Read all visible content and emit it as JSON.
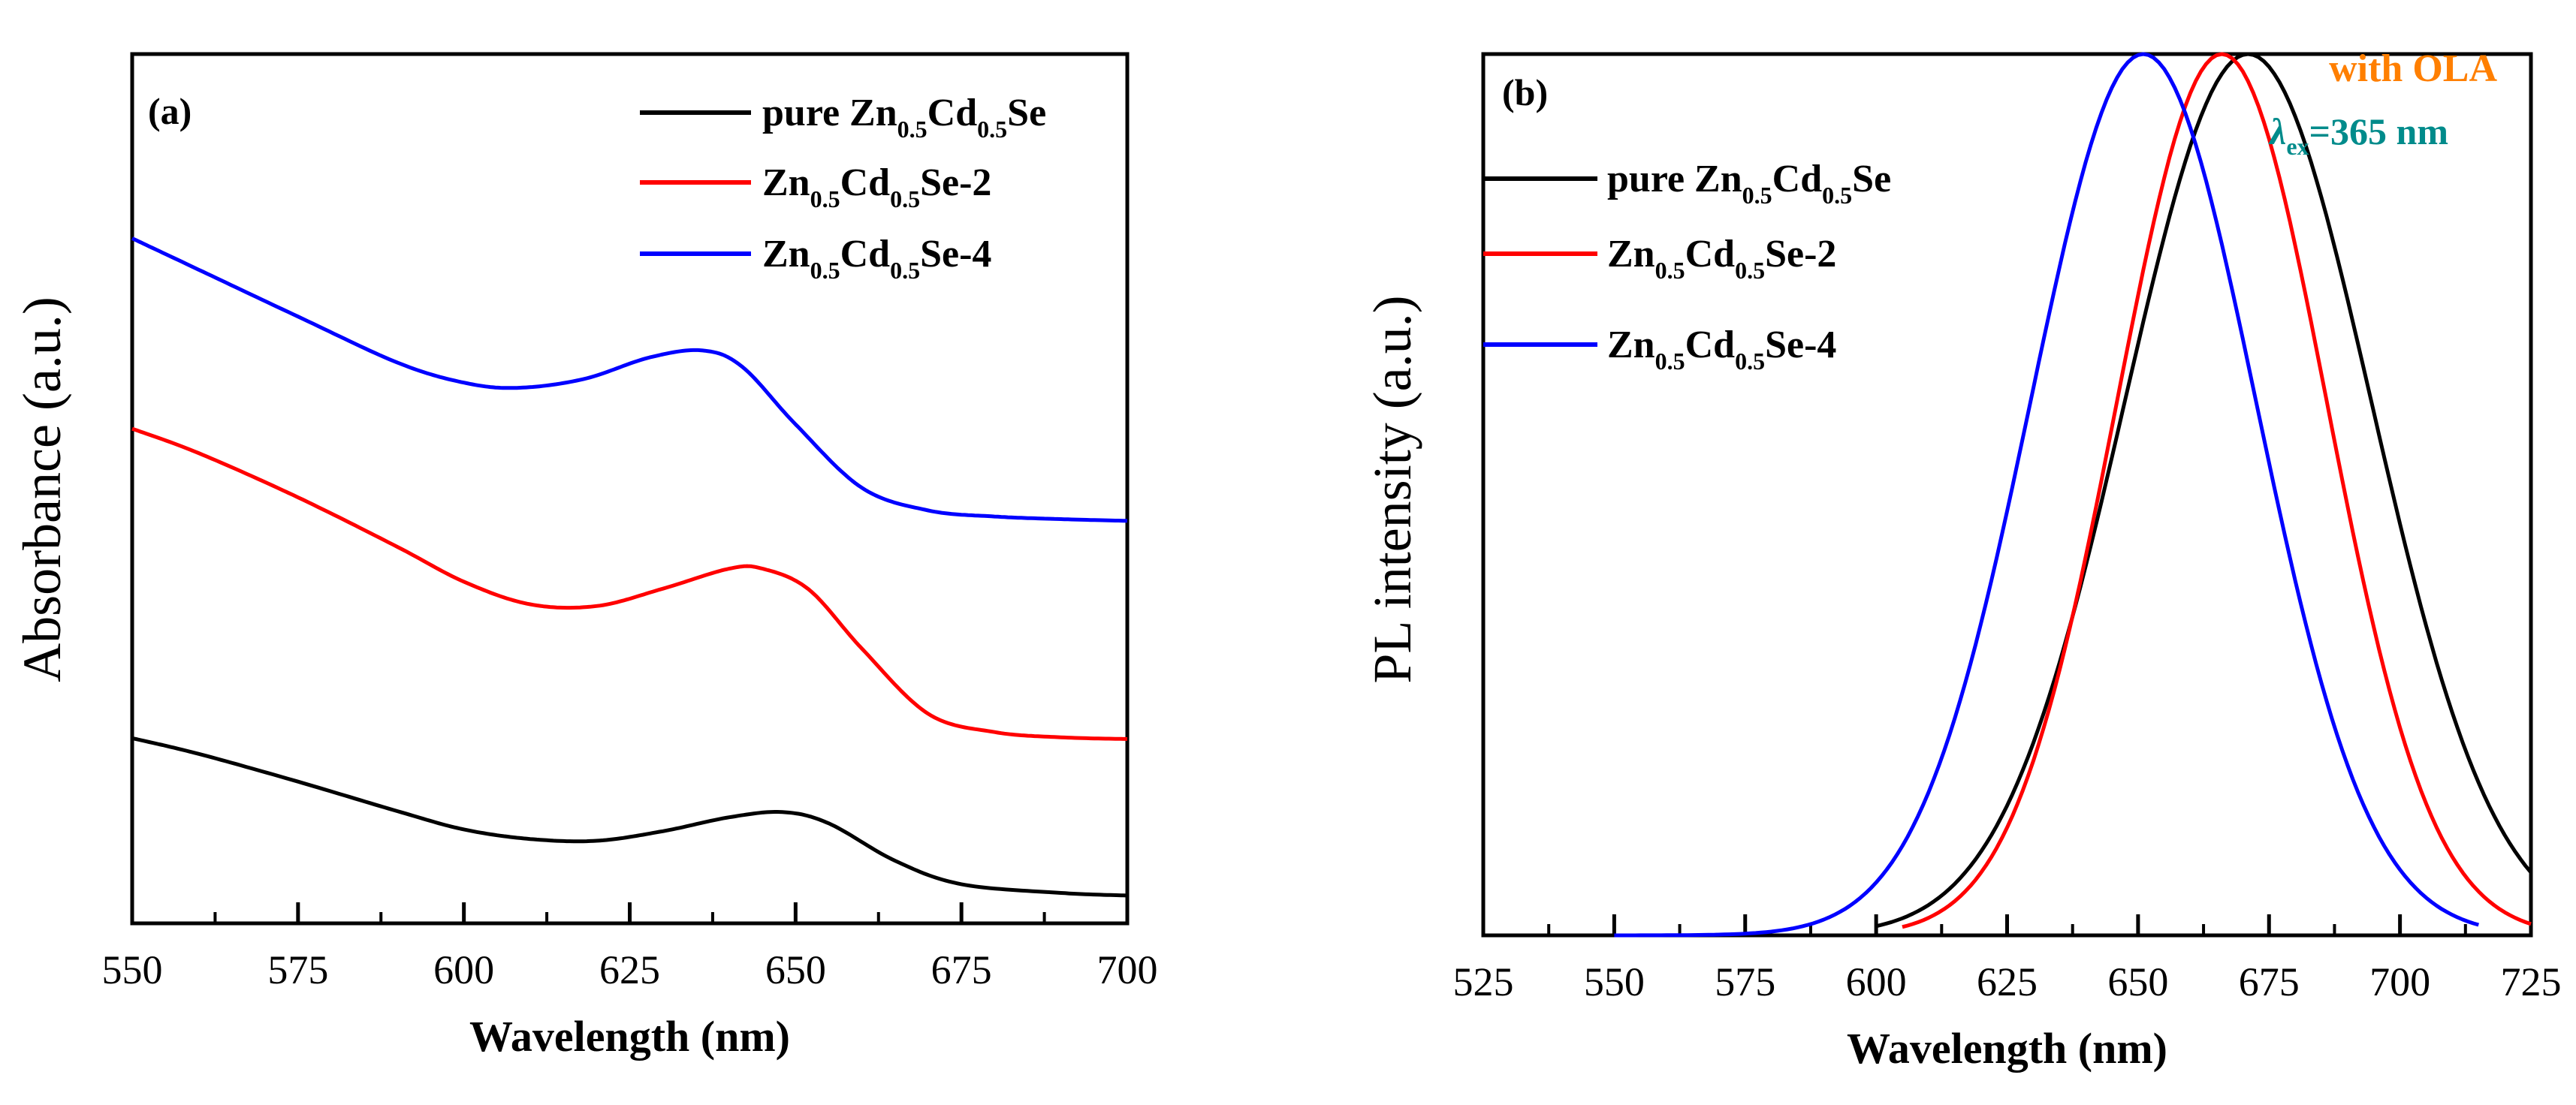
{
  "chart_data": [
    {
      "panel": "(a)",
      "type": "line",
      "xlabel": "Wavelength (nm)",
      "ylabel": "Absorbance (a.u.)",
      "xlim": [
        550,
        700
      ],
      "ylim": [
        0,
        1
      ],
      "xticks": [
        550,
        575,
        600,
        625,
        650,
        675,
        700
      ],
      "yticks_shown": false,
      "legend": {
        "placement": "top-right",
        "entries": [
          {
            "prefix": "pure Zn",
            "sub1": "0.5",
            "mid": "Cd",
            "sub2": "0.5",
            "suffix": "Se",
            "color": "#000000"
          },
          {
            "prefix": "Zn",
            "sub1": "0.5",
            "mid": "Cd",
            "sub2": "0.5",
            "suffix": "Se-2",
            "color": "#ff0000"
          },
          {
            "prefix": "Zn",
            "sub1": "0.5",
            "mid": "Cd",
            "sub2": "0.5",
            "suffix": "Se-4",
            "color": "#0000ff"
          }
        ]
      },
      "series": [
        {
          "name": "pure Zn0.5Cd0.5Se",
          "color": "#000000",
          "x": [
            550,
            560,
            575,
            590,
            600,
            610,
            620,
            630,
            640,
            648,
            655,
            665,
            675,
            690,
            700
          ],
          "y": [
            0.213,
            0.195,
            0.163,
            0.129,
            0.108,
            0.097,
            0.095,
            0.106,
            0.122,
            0.128,
            0.115,
            0.072,
            0.045,
            0.035,
            0.032
          ]
        },
        {
          "name": "Zn0.5Cd0.5Se-2",
          "color": "#ff0000",
          "x": [
            550,
            560,
            575,
            590,
            600,
            610,
            620,
            630,
            640,
            645,
            652,
            660,
            670,
            680,
            690,
            700
          ],
          "y": [
            0.569,
            0.541,
            0.49,
            0.433,
            0.393,
            0.367,
            0.365,
            0.385,
            0.408,
            0.408,
            0.384,
            0.316,
            0.241,
            0.22,
            0.214,
            0.212
          ]
        },
        {
          "name": "Zn0.5Cd0.5Se-4",
          "color": "#0000ff",
          "x": [
            550,
            560,
            575,
            590,
            600,
            608,
            618,
            628,
            636,
            642,
            650,
            660,
            670,
            680,
            690,
            700
          ],
          "y": [
            0.788,
            0.752,
            0.698,
            0.645,
            0.622,
            0.616,
            0.626,
            0.651,
            0.659,
            0.64,
            0.574,
            0.501,
            0.475,
            0.468,
            0.465,
            0.463
          ]
        }
      ]
    },
    {
      "panel": "(b)",
      "type": "line",
      "xlabel": "Wavelength (nm)",
      "ylabel": "PL intensity (a.u.)",
      "xlim": [
        525,
        725
      ],
      "ylim": [
        0,
        1
      ],
      "xticks": [
        525,
        550,
        575,
        600,
        625,
        650,
        675,
        700,
        725
      ],
      "yticks_shown": false,
      "annotations": [
        "with OLA",
        "ex",
        "=365 nm"
      ],
      "annotation_colors": {
        "with_ola": "#ff7f00",
        "lambda": "#008b8b"
      },
      "legend": {
        "placement": "top-left",
        "entries": [
          {
            "prefix": "pure Zn",
            "sub1": "0.5",
            "mid": "Cd",
            "sub2": "0.5",
            "suffix": "Se",
            "color": "#000000"
          },
          {
            "prefix": "Zn",
            "sub1": "0.5",
            "mid": "Cd",
            "sub2": "0.5",
            "suffix": "Se-2",
            "color": "#ff0000"
          },
          {
            "prefix": "Zn",
            "sub1": "0.5",
            "mid": "Cd",
            "sub2": "0.5",
            "suffix": "Se-4",
            "color": "#0000ff"
          }
        ]
      },
      "series": [
        {
          "name": "pure Zn0.5Cd0.5Se",
          "color": "#000000",
          "model": "gaussian",
          "peak_x": 671,
          "sigma": 23.5,
          "amplitude": 1.0,
          "x_range": [
            600,
            725
          ]
        },
        {
          "name": "Zn0.5Cd0.5Se-2",
          "color": "#ff0000",
          "model": "gaussian",
          "peak_x": 666,
          "sigma": 20,
          "amplitude": 1.0,
          "x_range": [
            605,
            725
          ]
        },
        {
          "name": "Zn0.5Cd0.5Se-4",
          "color": "#0000ff",
          "model": "gaussian",
          "peak_x": 651,
          "sigma": 21.5,
          "amplitude": 1.0,
          "x_range": [
            550,
            715
          ]
        }
      ]
    }
  ]
}
